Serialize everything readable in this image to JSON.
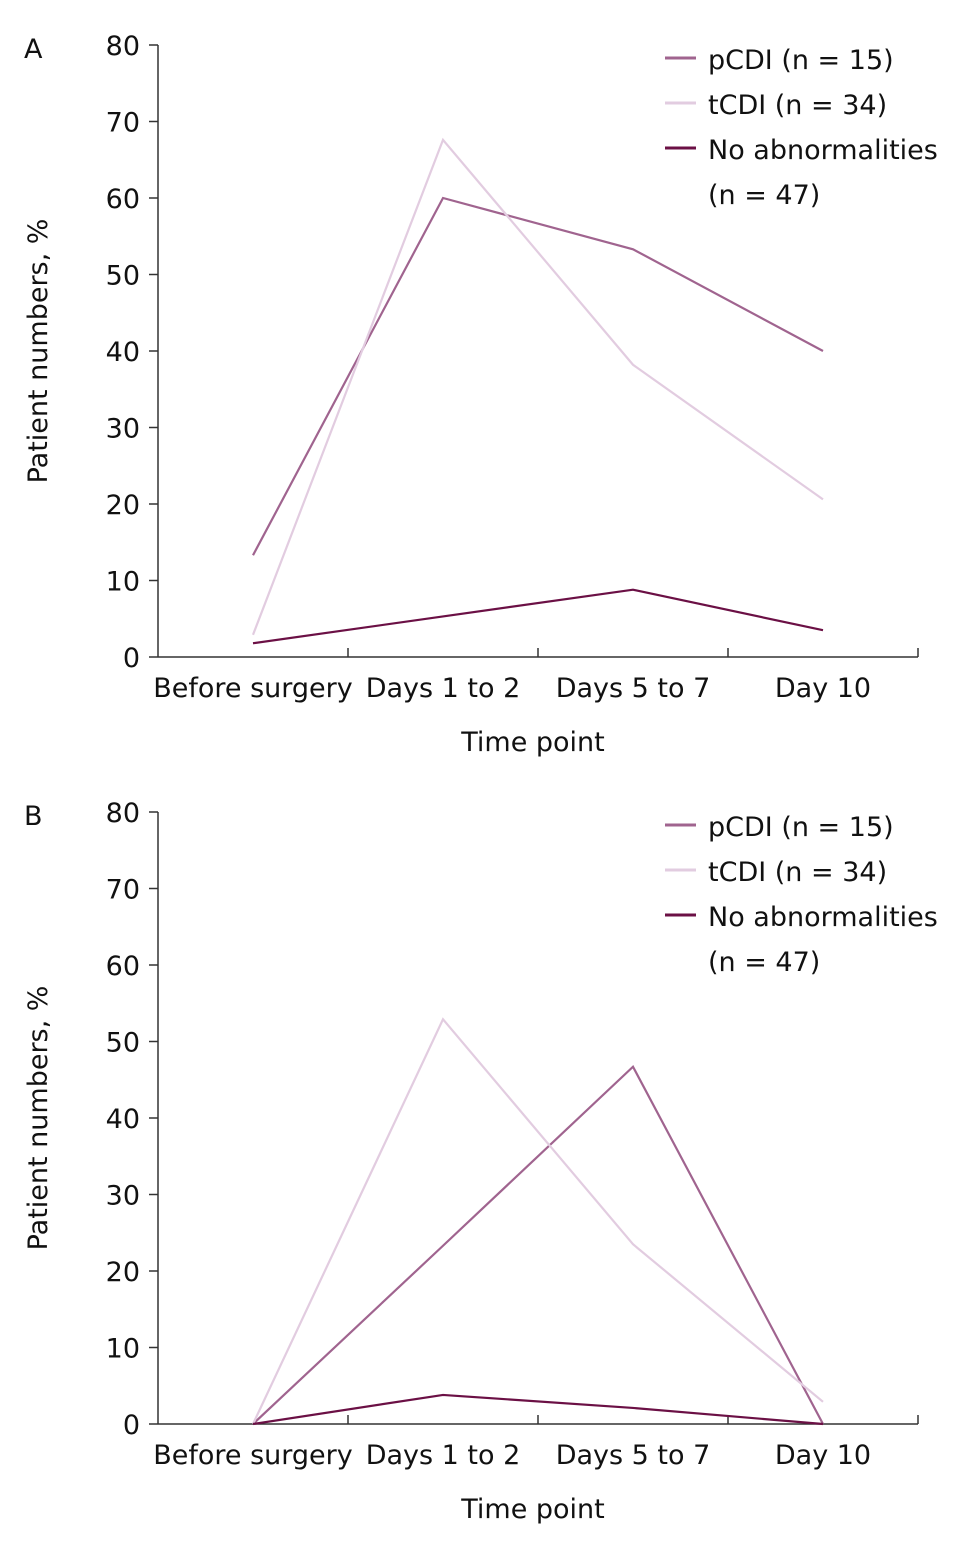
{
  "chart_data": [
    {
      "type": "line",
      "label": "A",
      "xlabel": "Time point",
      "ylabel": "Patient numbers, %",
      "categories": [
        "Before surgery",
        "Days 1 to 2",
        "Days 5 to 7",
        "Day 10"
      ],
      "ylim": [
        0,
        80
      ],
      "yticks": [
        0,
        10,
        20,
        30,
        40,
        50,
        60,
        70,
        80
      ],
      "grid": false,
      "legend": "upper right",
      "series": [
        {
          "name": "pCDI (n = 15)",
          "color": "#a0648f",
          "values": [
            13.3,
            60,
            53.3,
            40
          ]
        },
        {
          "name": "tCDI (n = 34)",
          "color": "#e2cce0",
          "values": [
            2.9,
            67.6,
            38.2,
            20.6
          ]
        },
        {
          "name": "No abnormalities (n = 47)",
          "color": "#6b1045",
          "values": [
            1.8,
            5.3,
            8.8,
            3.5
          ]
        }
      ]
    },
    {
      "type": "line",
      "label": "B",
      "xlabel": "Time point",
      "ylabel": "Patient numbers, %",
      "categories": [
        "Before surgery",
        "Days 1 to 2",
        "Days 5 to 7",
        "Day 10"
      ],
      "ylim": [
        0,
        80
      ],
      "yticks": [
        0,
        10,
        20,
        30,
        40,
        50,
        60,
        70,
        80
      ],
      "grid": false,
      "legend": "upper right",
      "series": [
        {
          "name": "pCDI (n = 15)",
          "color": "#a0648f",
          "values": [
            0,
            23.3,
            46.7,
            0
          ]
        },
        {
          "name": "tCDI (n = 34)",
          "color": "#e2cce0",
          "values": [
            0,
            52.9,
            23.5,
            2.9
          ]
        },
        {
          "name": "No abnormalities (n = 47)",
          "color": "#6b1045",
          "values": [
            0,
            3.8,
            2.1,
            0
          ]
        }
      ]
    }
  ]
}
